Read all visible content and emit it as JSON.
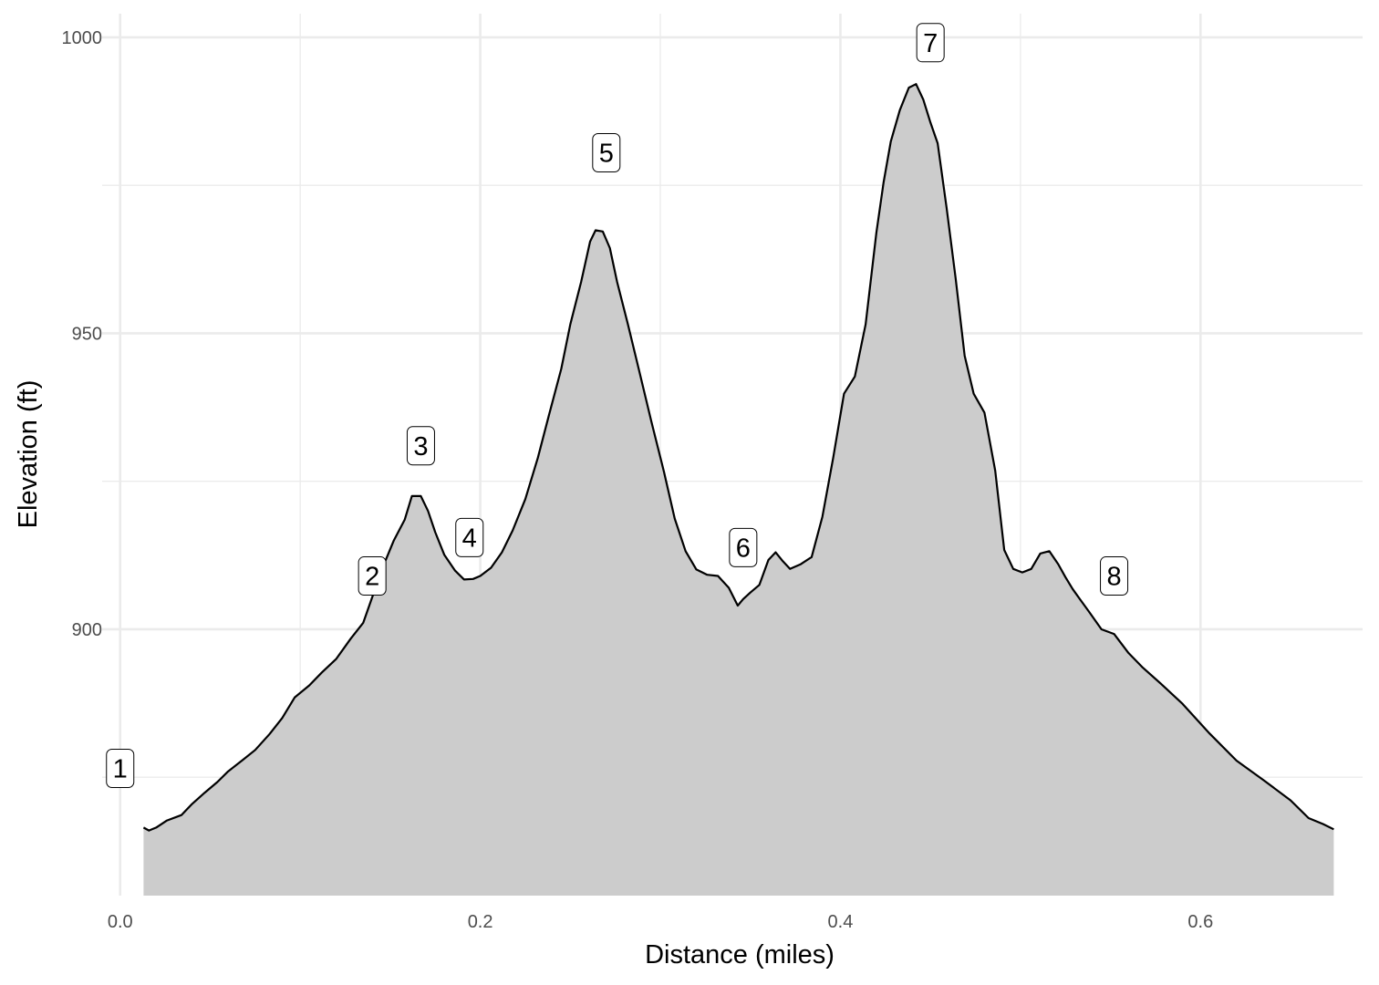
{
  "chart_data": {
    "type": "area",
    "title": "",
    "xlabel": "Distance (miles)",
    "ylabel": "Elevation (ft)",
    "xlim": [
      -0.01,
      0.69
    ],
    "ylim": [
      855,
      1004
    ],
    "area_floor": 855,
    "x_ticks": [
      0.0,
      0.2,
      0.4,
      0.6
    ],
    "x_tick_labels": [
      "0.0",
      "0.2",
      "0.4",
      "0.6"
    ],
    "y_ticks": [
      900,
      950,
      1000
    ],
    "y_tick_labels": [
      "900",
      "950",
      "1000"
    ],
    "grid": true,
    "fill_color": "#cccccc",
    "line_color": "#000000",
    "x": [
      0.013,
      0.016,
      0.02,
      0.026,
      0.034,
      0.04,
      0.047,
      0.054,
      0.06,
      0.068,
      0.075,
      0.083,
      0.09,
      0.097,
      0.105,
      0.112,
      0.12,
      0.128,
      0.135,
      0.14,
      0.146,
      0.152,
      0.158,
      0.162,
      0.167,
      0.171,
      0.175,
      0.18,
      0.186,
      0.191,
      0.196,
      0.2,
      0.206,
      0.212,
      0.218,
      0.225,
      0.232,
      0.238,
      0.245,
      0.25,
      0.256,
      0.261,
      0.264,
      0.268,
      0.272,
      0.276,
      0.282,
      0.288,
      0.295,
      0.302,
      0.308,
      0.314,
      0.32,
      0.326,
      0.332,
      0.338,
      0.343,
      0.346,
      0.35,
      0.355,
      0.36,
      0.364,
      0.368,
      0.372,
      0.378,
      0.384,
      0.39,
      0.396,
      0.402,
      0.408,
      0.414,
      0.42,
      0.424,
      0.428,
      0.433,
      0.438,
      0.442,
      0.446,
      0.45,
      0.454,
      0.459,
      0.464,
      0.469,
      0.474,
      0.48,
      0.486,
      0.491,
      0.496,
      0.501,
      0.506,
      0.511,
      0.516,
      0.521,
      0.525,
      0.529,
      0.533,
      0.538,
      0.545,
      0.552,
      0.56,
      0.568,
      0.578,
      0.59,
      0.605,
      0.62,
      0.635,
      0.65,
      0.66,
      0.668,
      0.674
    ],
    "y": [
      866.5,
      866,
      866.5,
      867.7,
      868.6,
      870.5,
      872.4,
      874.2,
      876,
      877.9,
      879.6,
      882.3,
      885,
      888.5,
      890.5,
      892.7,
      895,
      898.4,
      901.1,
      905.4,
      910.6,
      915,
      918.5,
      922.5,
      922.5,
      920,
      916.4,
      912.6,
      909.9,
      908.4,
      908.5,
      909,
      910.4,
      913,
      916.7,
      922,
      929,
      936,
      944,
      951.5,
      958.7,
      965.5,
      967.4,
      967.2,
      964.4,
      958.7,
      951.5,
      944,
      935.1,
      926.6,
      918.7,
      913.2,
      910.1,
      909.2,
      909,
      907,
      904,
      905.1,
      906.2,
      907.5,
      911.7,
      913,
      911.5,
      910.2,
      911,
      912.2,
      919,
      929,
      939.8,
      942.7,
      951.5,
      967,
      975.5,
      982.4,
      987.7,
      991.5,
      992.1,
      989.5,
      985.6,
      982.1,
      971.2,
      959.3,
      946.2,
      939.8,
      936.6,
      926.8,
      913.4,
      910.2,
      909.6,
      910.2,
      912.8,
      913.2,
      911,
      908.8,
      906.8,
      905.1,
      903,
      900,
      899.2,
      896,
      893.5,
      890.8,
      887.4,
      882.4,
      877.8,
      874.5,
      871.1,
      868.1,
      867.1,
      866.2
    ],
    "point_labels": [
      {
        "text": "1",
        "x": 0.0,
        "y": 876.5
      },
      {
        "text": "2",
        "x": 0.14,
        "y": 909
      },
      {
        "text": "3",
        "x": 0.167,
        "y": 931
      },
      {
        "text": "4",
        "x": 0.194,
        "y": 915.5
      },
      {
        "text": "5",
        "x": 0.27,
        "y": 980.5
      },
      {
        "text": "6",
        "x": 0.346,
        "y": 913.8
      },
      {
        "text": "7",
        "x": 0.45,
        "y": 999.1
      },
      {
        "text": "8",
        "x": 0.552,
        "y": 909
      }
    ]
  }
}
